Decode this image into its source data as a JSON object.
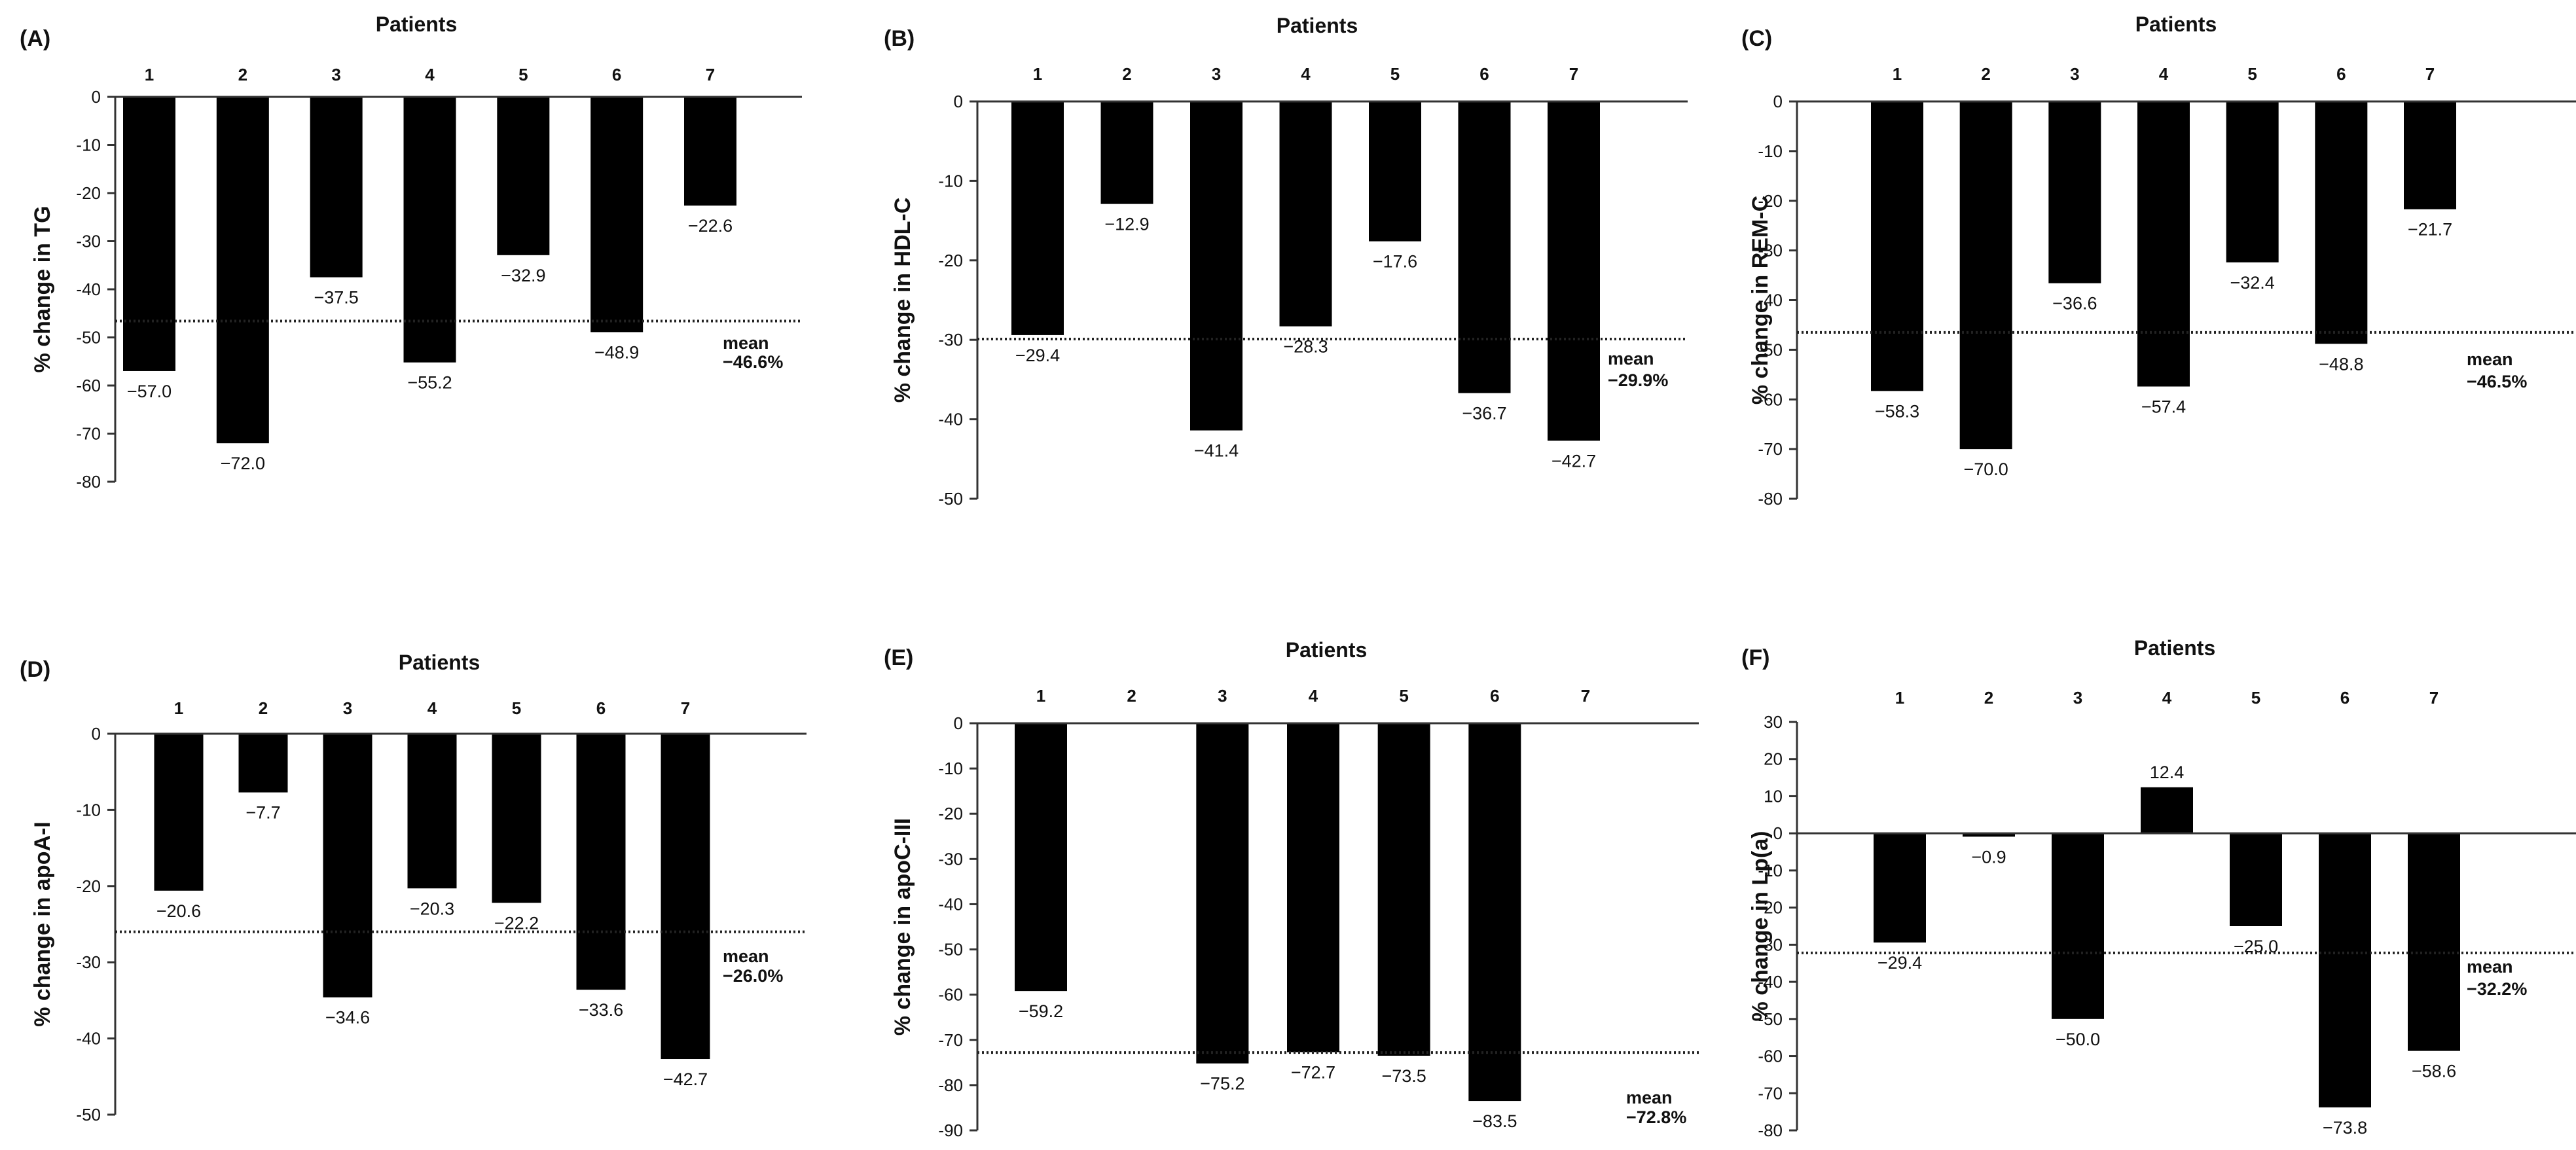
{
  "chart_data": [
    {
      "type": "bar",
      "panel": "(A)",
      "title": "Patients",
      "ylabel": "% change in TG",
      "categories": [
        "1",
        "2",
        "3",
        "4",
        "5",
        "6",
        "7"
      ],
      "values": [
        -57.0,
        -72.0,
        -37.5,
        -55.2,
        -32.9,
        -48.9,
        -22.6
      ],
      "value_labels": [
        "−57.0",
        "−72.0",
        "−37.5",
        "−55.2",
        "−32.9",
        "−48.9",
        "−22.6"
      ],
      "ylim": [
        -80,
        0
      ],
      "yticks": [
        0,
        -10,
        -20,
        -30,
        -40,
        -50,
        -60,
        -70,
        -80
      ],
      "mean": -46.6,
      "mean_word": "mean",
      "mean_label": "−46.6%"
    },
    {
      "type": "bar",
      "panel": "(B)",
      "title": "Patients",
      "ylabel": "% change in HDL-C",
      "categories": [
        "1",
        "2",
        "3",
        "4",
        "5",
        "6",
        "7"
      ],
      "values": [
        -29.4,
        -12.9,
        -41.4,
        -28.3,
        -17.6,
        -36.7,
        -42.7
      ],
      "value_labels": [
        "−29.4",
        "−12.9",
        "−41.4",
        "−28.3",
        "−17.6",
        "−36.7",
        "−42.7"
      ],
      "ylim": [
        -50,
        0
      ],
      "yticks": [
        0,
        -10,
        -20,
        -30,
        -40,
        -50
      ],
      "mean": -29.9,
      "mean_word": "mean",
      "mean_label": "−29.9%"
    },
    {
      "type": "bar",
      "panel": "(C)",
      "title": "Patients",
      "ylabel": "% change in REM-C",
      "categories": [
        "1",
        "2",
        "3",
        "4",
        "5",
        "6",
        "7"
      ],
      "values": [
        -58.3,
        -70.0,
        -36.6,
        -57.4,
        -32.4,
        -48.8,
        -21.7
      ],
      "value_labels": [
        "−58.3",
        "−70.0",
        "−36.6",
        "−57.4",
        "−32.4",
        "−48.8",
        "−21.7"
      ],
      "ylim": [
        -80,
        0
      ],
      "yticks": [
        0,
        -10,
        -20,
        -30,
        -40,
        -50,
        -60,
        -70,
        -80
      ],
      "mean": -46.5,
      "mean_word": "mean",
      "mean_label": "−46.5%"
    },
    {
      "type": "bar",
      "panel": "(D)",
      "title": "Patients",
      "ylabel": "% change in apoA-I",
      "categories": [
        "1",
        "2",
        "3",
        "4",
        "5",
        "6",
        "7"
      ],
      "values": [
        -20.6,
        -7.7,
        -34.6,
        -20.3,
        -22.2,
        -33.6,
        -42.7
      ],
      "value_labels": [
        "−20.6",
        "−7.7",
        "−34.6",
        "−20.3",
        "−22.2",
        "−33.6",
        "−42.7"
      ],
      "ylim": [
        -50,
        0
      ],
      "yticks": [
        0,
        -10,
        -20,
        -30,
        -40,
        -50
      ],
      "mean": -26.0,
      "mean_word": "mean",
      "mean_label": "−26.0%"
    },
    {
      "type": "bar",
      "panel": "(E)",
      "title": "Patients",
      "ylabel": "% change in apoC-III",
      "categories": [
        "1",
        "2",
        "3",
        "4",
        "5",
        "6",
        "7"
      ],
      "values": [
        -59.2,
        null,
        -75.2,
        -72.7,
        -73.5,
        -83.5,
        null
      ],
      "value_labels": [
        "−59.2",
        "",
        "−75.2",
        "−72.7",
        "−73.5",
        "−83.5",
        ""
      ],
      "ylim": [
        -90,
        0
      ],
      "yticks": [
        0,
        -10,
        -20,
        -30,
        -40,
        -50,
        -60,
        -70,
        -80,
        -90
      ],
      "mean": -72.8,
      "mean_word": "mean",
      "mean_label": "−72.8%"
    },
    {
      "type": "bar",
      "panel": "(F)",
      "title": "Patients",
      "ylabel": "% change in Lp(a)",
      "categories": [
        "1",
        "2",
        "3",
        "4",
        "5",
        "6",
        "7"
      ],
      "values": [
        -29.4,
        -0.9,
        -50.0,
        12.4,
        -25.0,
        -73.8,
        -58.6
      ],
      "value_labels": [
        "−29.4",
        "−0.9",
        "−50.0",
        "12.4",
        "−25.0",
        "−73.8",
        "−58.6"
      ],
      "ylim": [
        -80,
        30
      ],
      "yticks": [
        30,
        20,
        10,
        0,
        -10,
        -20,
        -30,
        -40,
        -50,
        -60,
        -70,
        -80
      ],
      "mean": -32.2,
      "mean_word": "mean",
      "mean_label": "−32.2%"
    }
  ]
}
